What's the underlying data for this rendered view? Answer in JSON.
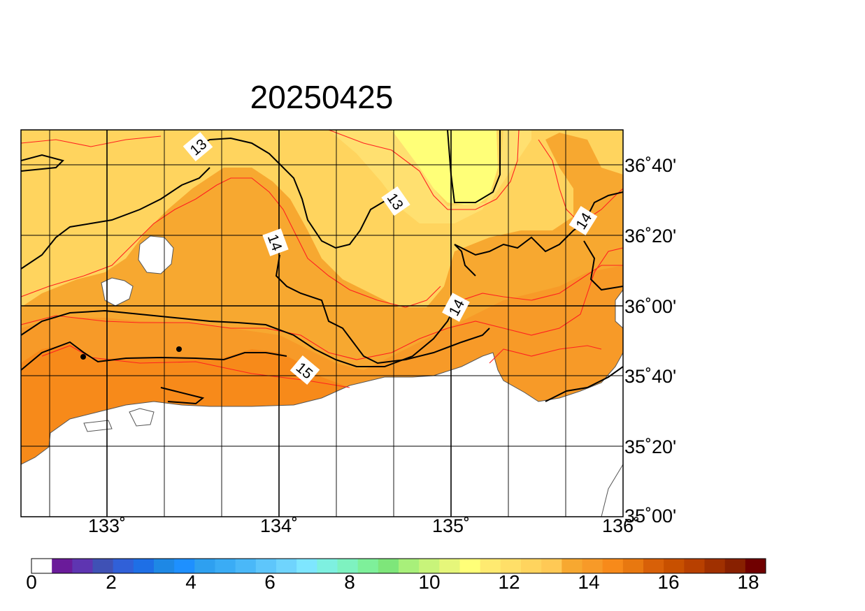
{
  "title": "20250425",
  "map": {
    "lon_labels": [
      "133˚",
      "134˚",
      "135˚",
      "136˚"
    ],
    "lat_labels": [
      "36˚40'",
      "36˚20'",
      "36˚00'",
      "35˚40'",
      "35˚20'",
      "35˚00'"
    ],
    "contour_labels": [
      "13",
      "13",
      "14",
      "14",
      "14",
      "15"
    ]
  },
  "colorbar": {
    "labels": [
      "0",
      "2",
      "4",
      "6",
      "8",
      "10",
      "12",
      "14",
      "16",
      "18"
    ],
    "colors": [
      "#ffffff",
      "#6a1b9a",
      "#5e35b1",
      "#3f51b5",
      "#3060d8",
      "#1e6fe6",
      "#1e88e5",
      "#1e90ff",
      "#2ea0f0",
      "#3aacf5",
      "#4ab8f8",
      "#5ec6fb",
      "#6fd4fd",
      "#7ee6ff",
      "#7ef0e0",
      "#7ef2c0",
      "#7ef09a",
      "#7ee67a",
      "#a8f07a",
      "#c8f47a",
      "#e6f67a",
      "#ffff78",
      "#ffea70",
      "#ffdf68",
      "#ffd45e",
      "#ffc955",
      "#f7a830",
      "#f79a28",
      "#f78a1a",
      "#e87810",
      "#d86008",
      "#c85000",
      "#b84000",
      "#a03000",
      "#882000",
      "#700000"
    ]
  }
}
